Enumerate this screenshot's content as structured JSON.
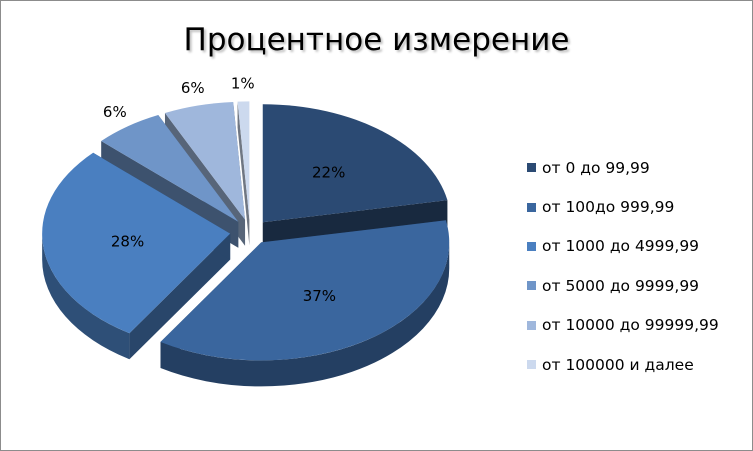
{
  "chart_data": {
    "type": "pie",
    "title": "Процентное измерение",
    "categories": [
      "от 0 до 99,99",
      "от 100до 999,99",
      "от 1000 до 4999,99",
      "от 5000 до 9999,99",
      "от 10000 до 99999,99",
      "от 100000 и далее"
    ],
    "values": [
      22,
      37,
      28,
      6,
      6,
      1
    ],
    "labels": [
      "22%",
      "37%",
      "28%",
      "6%",
      "6%",
      "1%"
    ],
    "colors": [
      "#2b4a73",
      "#3a669e",
      "#4a7fc0",
      "#6f95c8",
      "#9fb7dc",
      "#ccd9ee"
    ],
    "exploded": true,
    "style": "3d",
    "legend_position": "right"
  }
}
